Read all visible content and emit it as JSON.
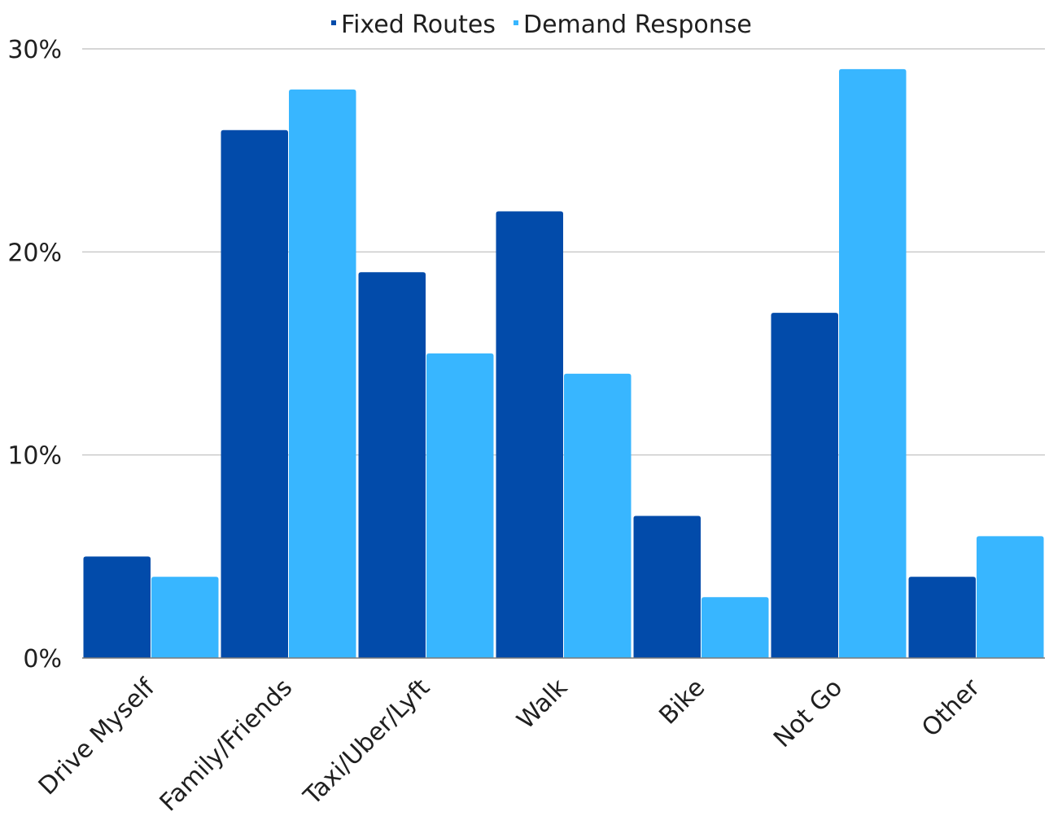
{
  "chart_data": {
    "type": "bar",
    "categories": [
      "Drive Myself",
      "Family/Friends",
      "Taxi/Uber/Lyft",
      "Walk",
      "Bike",
      "Not Go",
      "Other"
    ],
    "series": [
      {
        "name": "Fixed Routes",
        "color": "#024BAA",
        "values": [
          5,
          26,
          19,
          22,
          7,
          17,
          4
        ]
      },
      {
        "name": "Demand Response",
        "color": "#38B6FF",
        "values": [
          4,
          28,
          15,
          14,
          3,
          29,
          6
        ]
      }
    ],
    "title": "",
    "xlabel": "",
    "ylabel": "",
    "ylim": [
      0,
      30
    ],
    "yticks": [
      0,
      10,
      20,
      30
    ],
    "ytick_labels": [
      "0%",
      "10%",
      "20%",
      "30%"
    ],
    "grid": true,
    "legend_position": "top-center"
  }
}
